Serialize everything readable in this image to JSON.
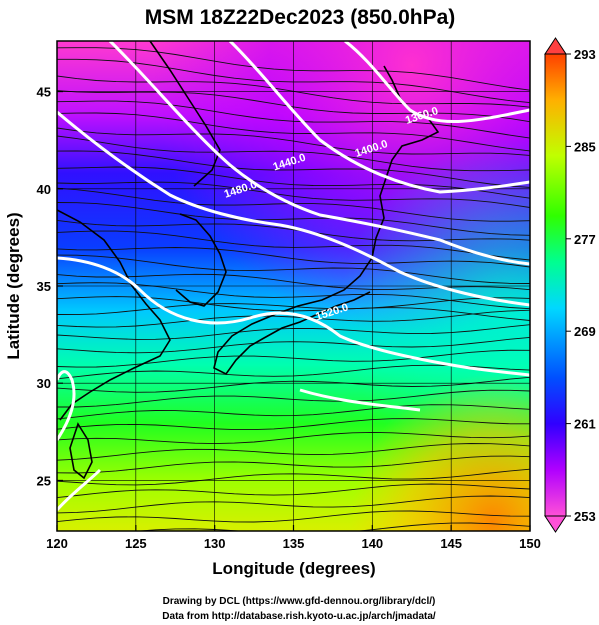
{
  "title": "MSM 18Z22Dec2023 (850.0hPa)",
  "credits": {
    "line1": "Drawing by DCL (https://www.gfd-dennou.org/library/dcl/)",
    "line2": "Data from http://database.rish.kyoto-u.ac.jp/arch/jmadata/"
  },
  "chart_data": {
    "type": "heatmap",
    "xlabel": "Longitude (degrees)",
    "ylabel": "Latitude  (degrees)",
    "xlim": [
      120,
      150
    ],
    "ylim": [
      22.4,
      47.6
    ],
    "x_ticks": [
      "120",
      "125",
      "130",
      "135",
      "140",
      "145",
      "150"
    ],
    "y_ticks": [
      "25",
      "30",
      "35",
      "40",
      "45"
    ],
    "grid": true,
    "colorbar": {
      "min": 253,
      "max": 293,
      "ticks": [
        "253",
        "261",
        "269",
        "277",
        "285",
        "293"
      ],
      "colors": [
        "#ff4fd8",
        "#b000ff",
        "#2d00ff",
        "#0040ff",
        "#00d7ff",
        "#00ff80",
        "#38ff00",
        "#c8ff00",
        "#ffb000",
        "#ff4000"
      ],
      "extend": "both"
    },
    "contour_labels": [
      {
        "text": "1360.0",
        "lon": 143.2,
        "lat": 43.6
      },
      {
        "text": "1400.0",
        "lon": 140.0,
        "lat": 41.9
      },
      {
        "text": "1440.0",
        "lon": 134.8,
        "lat": 41.2
      },
      {
        "text": "1480.0",
        "lon": 131.7,
        "lat": 39.8
      },
      {
        "text": "1520.0",
        "lon": 137.5,
        "lat": 33.5
      }
    ]
  }
}
